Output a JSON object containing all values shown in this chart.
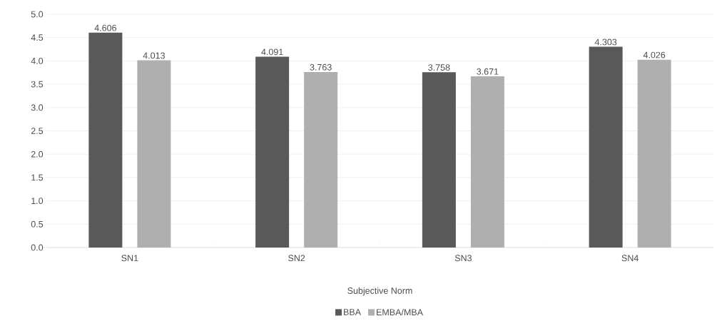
{
  "chart_data": {
    "type": "bar",
    "xlabel": "Subjective Norm",
    "categories": [
      "SN1",
      "SN2",
      "SN3",
      "SN4"
    ],
    "series": [
      {
        "name": "BBA",
        "color": "#595959",
        "values": [
          4.606,
          4.091,
          3.758,
          4.303
        ]
      },
      {
        "name": "EMBA/MBA",
        "color": "#afafaf",
        "values": [
          4.013,
          3.763,
          3.671,
          4.026
        ]
      }
    ],
    "ylim": [
      0,
      5
    ],
    "yticks": [
      {
        "value": 0,
        "label": "0.0"
      },
      {
        "value": 0.5,
        "label": "0.5"
      },
      {
        "value": 1,
        "label": "1.0"
      },
      {
        "value": 1.5,
        "label": "1.5"
      },
      {
        "value": 2,
        "label": "2.0"
      },
      {
        "value": 2.5,
        "label": "2.5"
      },
      {
        "value": 3,
        "label": "3.0"
      },
      {
        "value": 3.5,
        "label": "3.5"
      },
      {
        "value": 4,
        "label": "4.0"
      },
      {
        "value": 4.5,
        "label": "4.5"
      },
      {
        "value": 5,
        "label": "5.0"
      }
    ],
    "grid": "y",
    "legend": "bottom",
    "data_labels": true
  }
}
